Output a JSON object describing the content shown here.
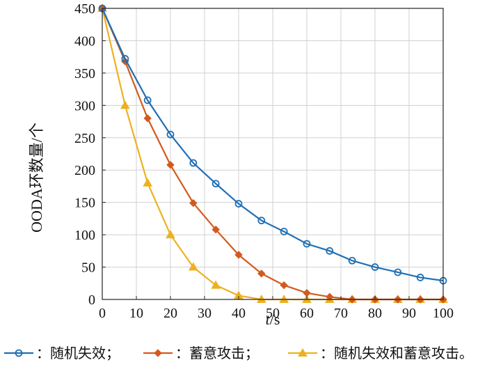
{
  "chart_data": {
    "type": "line",
    "title": "",
    "xlabel": "",
    "xlabel_var": "t",
    "xlabel_unit": "/s",
    "ylabel": "OODA环数量/个",
    "xlim": [
      0,
      100
    ],
    "ylim": [
      0,
      450
    ],
    "xticks": [
      0,
      10,
      20,
      30,
      40,
      50,
      60,
      70,
      80,
      90,
      100
    ],
    "yticks": [
      0,
      50,
      100,
      150,
      200,
      250,
      300,
      350,
      400,
      450
    ],
    "grid": true,
    "legend_position": "bottom",
    "series": [
      {
        "name": "：随机失效；",
        "color": "#1f6fb5",
        "marker": "circle",
        "x": [
          0,
          6.7,
          13.3,
          20,
          26.7,
          33.3,
          40,
          46.7,
          53.3,
          60,
          66.7,
          73.3,
          80,
          86.7,
          93.3,
          100
        ],
        "y": [
          450,
          372,
          308,
          255,
          211,
          179,
          148,
          122,
          105,
          86,
          75,
          60,
          50,
          42,
          34,
          29
        ]
      },
      {
        "name": "：蓄意攻击；",
        "color": "#d5591e",
        "marker": "diamond",
        "x": [
          0,
          6.7,
          13.3,
          20,
          26.7,
          33.3,
          40,
          46.7,
          53.3,
          60,
          66.7,
          73.3,
          80,
          86.7,
          93.3,
          100
        ],
        "y": [
          450,
          368,
          280,
          208,
          149,
          108,
          69,
          40,
          22,
          10,
          4,
          0,
          0,
          0,
          0,
          0
        ]
      },
      {
        "name": "：随机失效和蓄意攻击。",
        "color": "#edb120",
        "marker": "triangle",
        "x": [
          0,
          6.7,
          13.3,
          20,
          26.7,
          33.3,
          40,
          46.7,
          53.3,
          60,
          66.7,
          73.3,
          80,
          86.7,
          93.3,
          100
        ],
        "y": [
          450,
          300,
          180,
          100,
          50,
          22,
          6,
          0,
          0,
          0,
          0,
          0,
          0,
          0,
          0,
          0
        ]
      }
    ]
  }
}
